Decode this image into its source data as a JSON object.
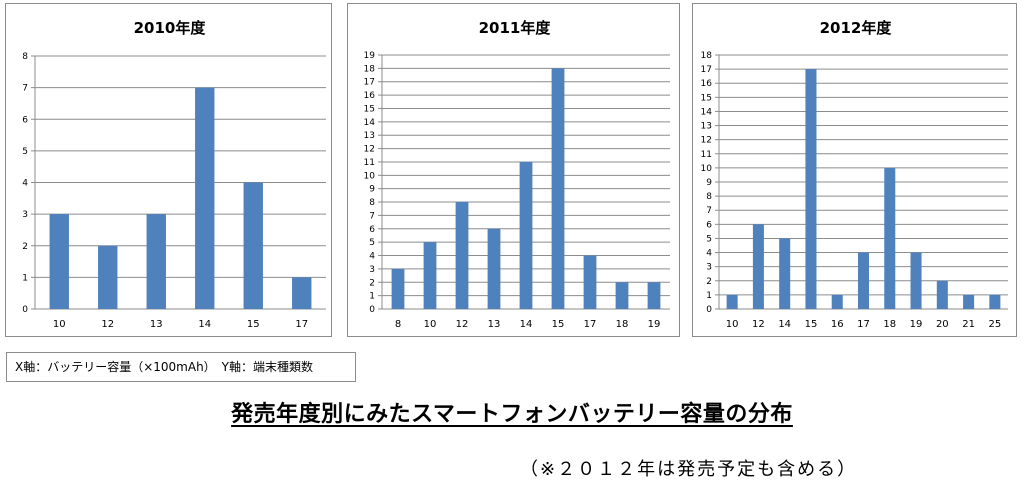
{
  "chart_data": [
    {
      "type": "bar",
      "title": "2010年度",
      "categories": [
        "10",
        "12",
        "13",
        "14",
        "15",
        "17"
      ],
      "values": [
        3,
        2,
        3,
        7,
        4,
        1
      ],
      "ylim": [
        0,
        8
      ],
      "yticks": [
        0,
        1,
        2,
        3,
        4,
        5,
        6,
        7,
        8
      ],
      "grid": true,
      "bar_color": "#4f81bd"
    },
    {
      "type": "bar",
      "title": "2011年度",
      "categories": [
        "8",
        "10",
        "12",
        "13",
        "14",
        "15",
        "17",
        "18",
        "19"
      ],
      "values": [
        3,
        5,
        8,
        6,
        11,
        18,
        4,
        2,
        2
      ],
      "ylim": [
        0,
        19
      ],
      "yticks": [
        0,
        1,
        2,
        3,
        4,
        5,
        6,
        7,
        8,
        9,
        10,
        11,
        12,
        13,
        14,
        15,
        16,
        17,
        18,
        19
      ],
      "grid": true,
      "bar_color": "#4f81bd"
    },
    {
      "type": "bar",
      "title": "2012年度",
      "categories": [
        "10",
        "12",
        "14",
        "15",
        "16",
        "17",
        "18",
        "19",
        "20",
        "21",
        "25"
      ],
      "values": [
        1,
        6,
        5,
        17,
        1,
        4,
        10,
        4,
        2,
        1,
        1
      ],
      "ylim": [
        0,
        18
      ],
      "yticks": [
        0,
        1,
        2,
        3,
        4,
        5,
        6,
        7,
        8,
        9,
        10,
        11,
        12,
        13,
        14,
        15,
        16,
        17,
        18
      ],
      "grid": true,
      "bar_color": "#4f81bd"
    }
  ],
  "legend_text": "X軸：バッテリー容量（×100mAh）　Y軸：端末種類数",
  "main_title": "発売年度別にみたスマートフォンバッテリー容量の分布",
  "note": "（※２０１２年は発売予定も含める）"
}
